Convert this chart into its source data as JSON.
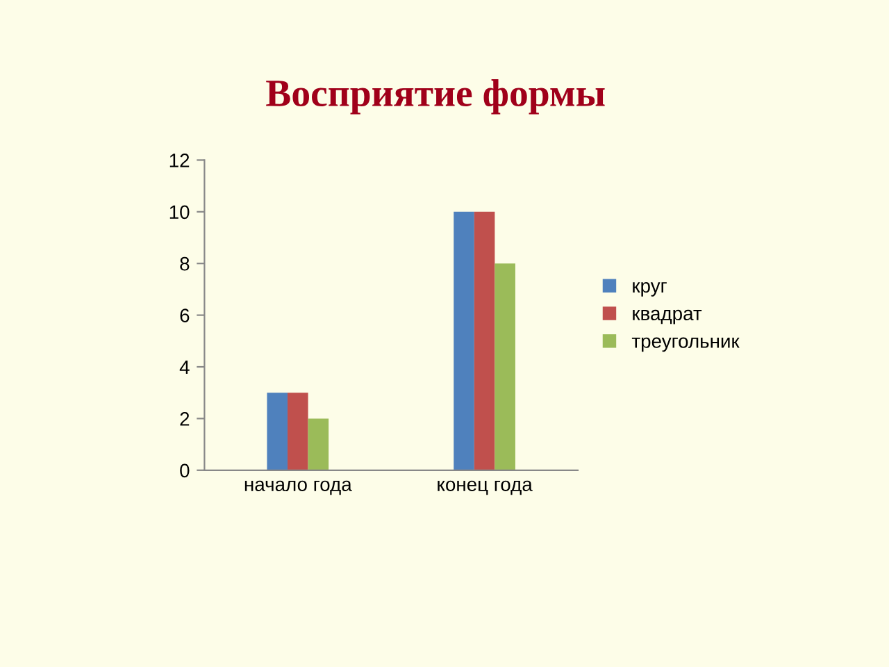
{
  "chart_data": {
    "type": "bar",
    "title": "Восприятие формы",
    "categories": [
      "начало года",
      "конец года"
    ],
    "series": [
      {
        "name": "круг",
        "color": "#4f81bd",
        "values": [
          3,
          10
        ]
      },
      {
        "name": "квадрат",
        "color": "#c0504d",
        "values": [
          3,
          10
        ]
      },
      {
        "name": "треугольник",
        "color": "#9bbb59",
        "values": [
          2,
          8
        ]
      }
    ],
    "ylim": [
      0,
      12
    ],
    "yticks": [
      0,
      2,
      4,
      6,
      8,
      10,
      12
    ],
    "grid": false,
    "legend": "right"
  }
}
